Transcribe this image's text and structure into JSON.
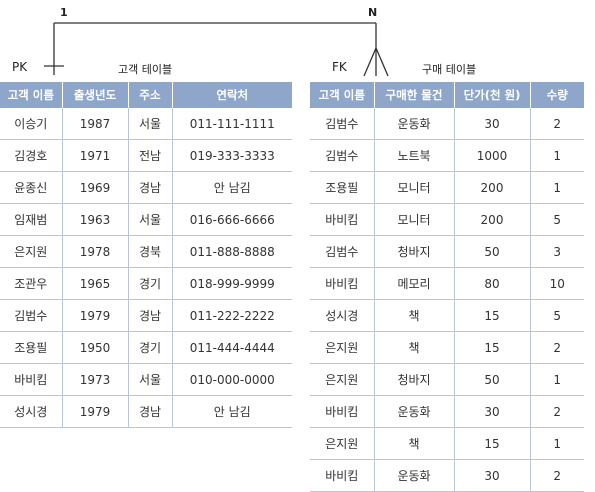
{
  "relation": {
    "left_cardinality": "1",
    "right_cardinality": "N",
    "left_key": "PK",
    "right_key": "FK"
  },
  "customer_table": {
    "title": "고객 테이블",
    "headers": [
      "고객 이름",
      "출생년도",
      "주소",
      "연락처"
    ],
    "rows": [
      [
        "이승기",
        "1987",
        "서울",
        "011-111-1111"
      ],
      [
        "김경호",
        "1971",
        "전남",
        "019-333-3333"
      ],
      [
        "윤종신",
        "1969",
        "경남",
        "안 남김"
      ],
      [
        "임재범",
        "1963",
        "서울",
        "016-666-6666"
      ],
      [
        "은지원",
        "1978",
        "경북",
        "011-888-8888"
      ],
      [
        "조관우",
        "1965",
        "경기",
        "018-999-9999"
      ],
      [
        "김범수",
        "1979",
        "경남",
        "011-222-2222"
      ],
      [
        "조용필",
        "1950",
        "경기",
        "011-444-4444"
      ],
      [
        "바비킴",
        "1973",
        "서울",
        "010-000-0000"
      ],
      [
        "성시경",
        "1979",
        "경남",
        "안 남김"
      ]
    ]
  },
  "purchase_table": {
    "title": "구매 테이블",
    "headers": [
      "고객 이름",
      "구매한 물건",
      "단가(천 원)",
      "수량"
    ],
    "rows": [
      [
        "김범수",
        "운동화",
        "30",
        "2"
      ],
      [
        "김범수",
        "노트북",
        "1000",
        "1"
      ],
      [
        "조용필",
        "모니터",
        "200",
        "1"
      ],
      [
        "바비킴",
        "모니터",
        "200",
        "5"
      ],
      [
        "김범수",
        "청바지",
        "50",
        "3"
      ],
      [
        "바비킴",
        "메모리",
        "80",
        "10"
      ],
      [
        "성시경",
        "책",
        "15",
        "5"
      ],
      [
        "은지원",
        "책",
        "15",
        "2"
      ],
      [
        "은지원",
        "청바지",
        "50",
        "1"
      ],
      [
        "바비킴",
        "운동화",
        "30",
        "2"
      ],
      [
        "은지원",
        "책",
        "15",
        "1"
      ],
      [
        "바비킴",
        "운동화",
        "30",
        "2"
      ]
    ]
  }
}
